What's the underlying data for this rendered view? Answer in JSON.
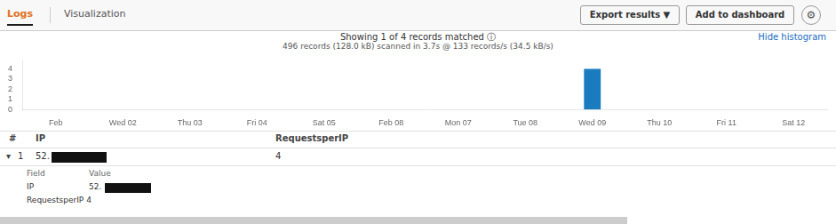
{
  "chart_data": {
    "type": "bar",
    "title": "Showing 1 of 4 records matched ⓘ",
    "subtitle": "496 records (128.0 kB) scanned in 3.7s @ 133 records/s (34.5 kB/s)",
    "categories": [
      "Feb",
      "Wed 02",
      "Thu 03",
      "Fri 04",
      "Sat 05",
      "Feb 08",
      "Mon 07",
      "Tue 08",
      "Wed 09",
      "Thu 10",
      "Fri 11",
      "Sat 12"
    ],
    "values": [
      null,
      null,
      null,
      null,
      null,
      null,
      null,
      null,
      4,
      null,
      null,
      null
    ],
    "color": "#1a7bbf",
    "ylim": [
      0,
      4.8
    ],
    "yticks": [
      0,
      1,
      2,
      3,
      4
    ],
    "grid": false,
    "annotations": [
      "Logs",
      "Visualization",
      "Export results ▼",
      "Add to dashboard",
      "⚙",
      "Hide histogram",
      "#",
      "IP",
      "RequestsperIP",
      "▾",
      "1",
      "52.",
      "4",
      "Field",
      "Value",
      "IP",
      "52.",
      "RequestsperIP 4"
    ]
  }
}
